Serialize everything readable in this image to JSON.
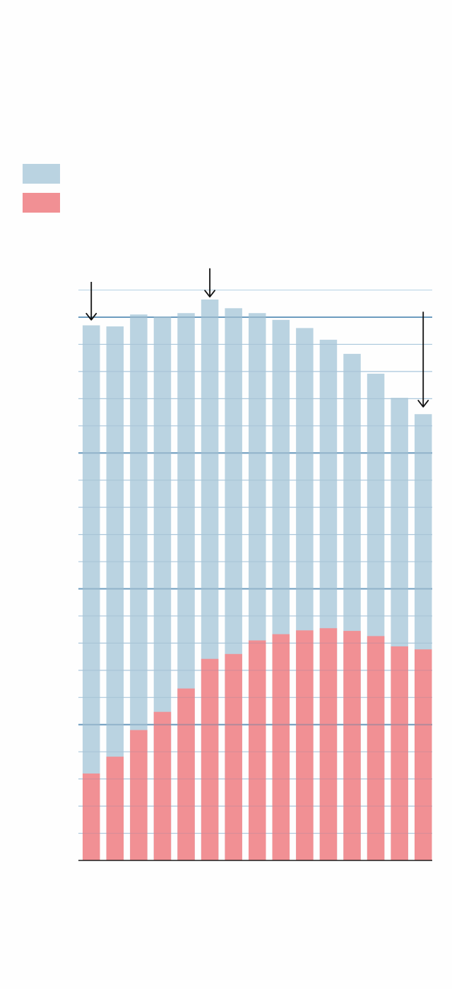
{
  "colors": {
    "background": "#fefefe",
    "total": "#bad3e1",
    "part": "#f19094",
    "grid_minor": "#bcd6e6",
    "grid_major": "#7eaecf",
    "axis": "#1b1b1b",
    "arrow": "#111111"
  },
  "legend": {
    "items": [
      {
        "series": "total",
        "label": ""
      },
      {
        "series": "part",
        "label": ""
      }
    ],
    "placement": "top-left"
  },
  "chart_data": {
    "type": "bar",
    "stacked": "overlay",
    "title": "",
    "xlabel": "",
    "ylabel": "",
    "categories": [
      "",
      "",
      "",
      "",
      "",
      "",
      "",
      "",
      "",
      "",
      "",
      "",
      "",
      "",
      ""
    ],
    "ylim": [
      0,
      21
    ],
    "grid": true,
    "grid_step": 1,
    "grid_major_values": [
      5,
      10,
      15,
      20
    ],
    "series": [
      {
        "key": "total",
        "values": [
          19.7,
          19.66,
          20.1,
          20.02,
          20.15,
          20.65,
          20.33,
          20.15,
          19.9,
          19.6,
          19.17,
          18.65,
          17.92,
          17.03,
          16.43
        ]
      },
      {
        "key": "part",
        "values": [
          3.2,
          3.82,
          4.8,
          5.47,
          6.33,
          7.42,
          7.6,
          8.1,
          8.33,
          8.47,
          8.55,
          8.45,
          8.26,
          7.88,
          7.77
        ]
      }
    ],
    "annotations": [
      {
        "type": "arrow",
        "bar_index": 0,
        "from_value": 21.3,
        "to_value": 19.9
      },
      {
        "type": "arrow",
        "bar_index": 5,
        "from_value": 21.8,
        "to_value": 20.75
      },
      {
        "type": "arrow",
        "bar_index": 14,
        "from_value": 20.2,
        "to_value": 16.7
      }
    ]
  }
}
